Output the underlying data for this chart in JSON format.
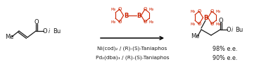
{
  "bg_color": "#ffffff",
  "arrow_color": "#000000",
  "structure_color": "#1a1a1a",
  "reagent_color": "#cc2200",
  "text_color": "#1a1a1a",
  "line1": "Ni(cod)₂ / (R)-(S)-Taniaphos",
  "line2": "Pd₂(dba)₃ / (R)-(S)-Taniaphos",
  "result1": "98% e.e.",
  "result2": "90% e.e.",
  "figsize": [
    3.78,
    1.05
  ],
  "dpi": 100
}
